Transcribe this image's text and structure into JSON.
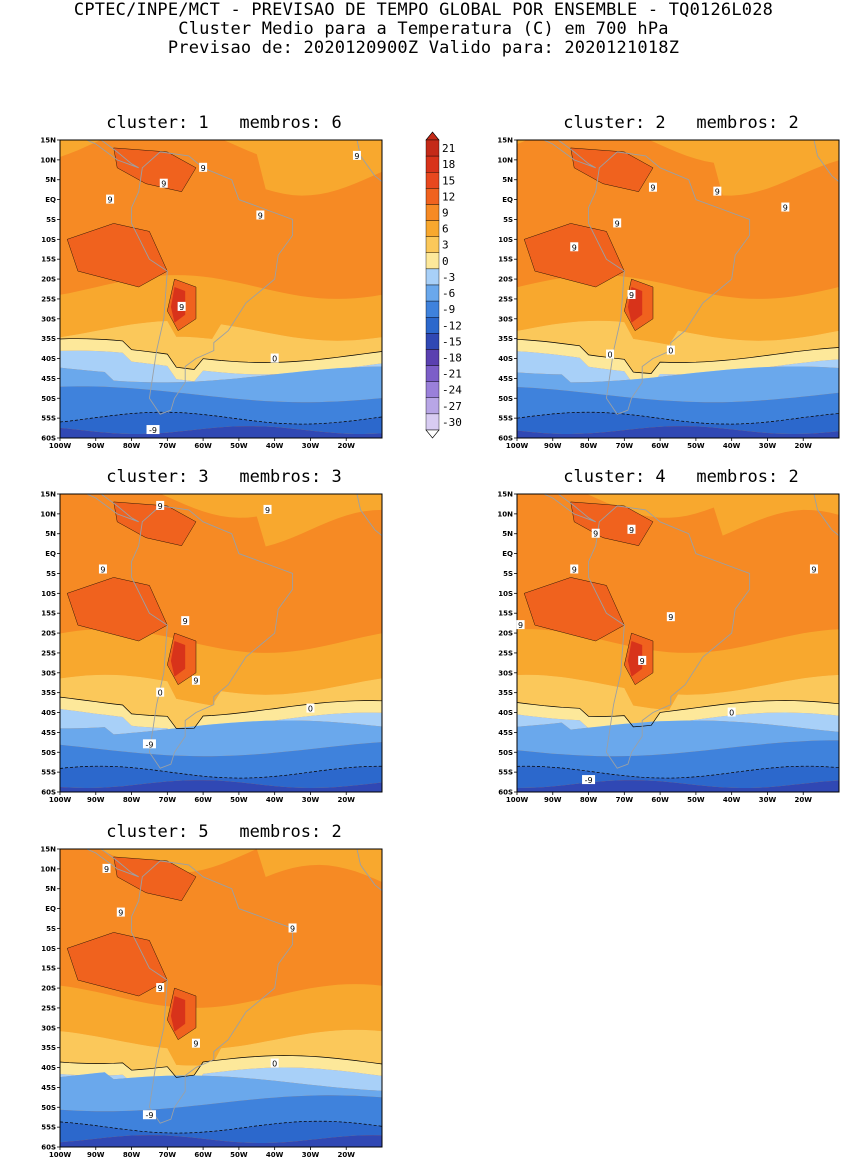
{
  "header": {
    "line1": "CPTEC/INPE/MCT - PREVISAO DE TEMPO GLOBAL POR ENSEMBLE - TQ0126L028",
    "line2": "Cluster Medio para a Temperatura (C) em 700 hPa",
    "line3": "Previsao de: 2020120900Z   Valido para: 2020121018Z"
  },
  "lat_labels": [
    "15N",
    "10N",
    "5N",
    "EQ",
    "5S",
    "10S",
    "15S",
    "20S",
    "25S",
    "30S",
    "35S",
    "40S",
    "45S",
    "50S",
    "55S",
    "60S"
  ],
  "lon_labels": [
    "100W",
    "90W",
    "80W",
    "70W",
    "60W",
    "50W",
    "40W",
    "30W",
    "20W"
  ],
  "colorbar": {
    "labels": [
      "21",
      "18",
      "15",
      "12",
      "9",
      "6",
      "3",
      "0",
      "-3",
      "-6",
      "-9",
      "-12",
      "-15",
      "-18",
      "-21",
      "-24",
      "-27",
      "-30"
    ],
    "colors": [
      "#c42a18",
      "#d8331a",
      "#e8481e",
      "#f0621e",
      "#f68a24",
      "#f8a82e",
      "#fbc85a",
      "#fde89a",
      "#a8d0f8",
      "#6aa8ec",
      "#3f82dc",
      "#2c68cc",
      "#3048b4",
      "#5a40b0",
      "#7c5ec8",
      "#9a80da",
      "#b8a6e6",
      "#d8ccf2"
    ]
  },
  "panels": [
    {
      "title": "cluster: 1   membros: 6",
      "labels": [
        {
          "t": "9"
        },
        {
          "t": "9"
        },
        {
          "t": "9"
        },
        {
          "t": "9"
        },
        {
          "t": "9"
        },
        {
          "t": "9"
        },
        {
          "t": "0"
        },
        {
          "t": "-9"
        }
      ]
    },
    {
      "title": "cluster: 2   membros: 2",
      "labels": [
        {
          "t": "9"
        },
        {
          "t": "9"
        },
        {
          "t": "9"
        },
        {
          "t": "9"
        },
        {
          "t": "9"
        },
        {
          "t": "9"
        },
        {
          "t": "0"
        },
        {
          "t": "0"
        }
      ]
    },
    {
      "title": "cluster: 3   membros: 3",
      "labels": [
        {
          "t": "9"
        },
        {
          "t": "9"
        },
        {
          "t": "9"
        },
        {
          "t": "9"
        },
        {
          "t": "9"
        },
        {
          "t": "0"
        },
        {
          "t": "0"
        },
        {
          "t": "-9"
        }
      ]
    },
    {
      "title": "cluster: 4   membros: 2",
      "labels": [
        {
          "t": "9"
        },
        {
          "t": "9"
        },
        {
          "t": "9"
        },
        {
          "t": "9"
        },
        {
          "t": "9"
        },
        {
          "t": "9"
        },
        {
          "t": "9"
        },
        {
          "t": "0"
        },
        {
          "t": "-9"
        }
      ]
    },
    {
      "title": "cluster: 5   membros: 2",
      "labels": [
        {
          "t": "9"
        },
        {
          "t": "9"
        },
        {
          "t": "9"
        },
        {
          "t": "9"
        },
        {
          "t": "9"
        },
        {
          "t": "0"
        },
        {
          "t": "-9"
        }
      ]
    }
  ]
}
